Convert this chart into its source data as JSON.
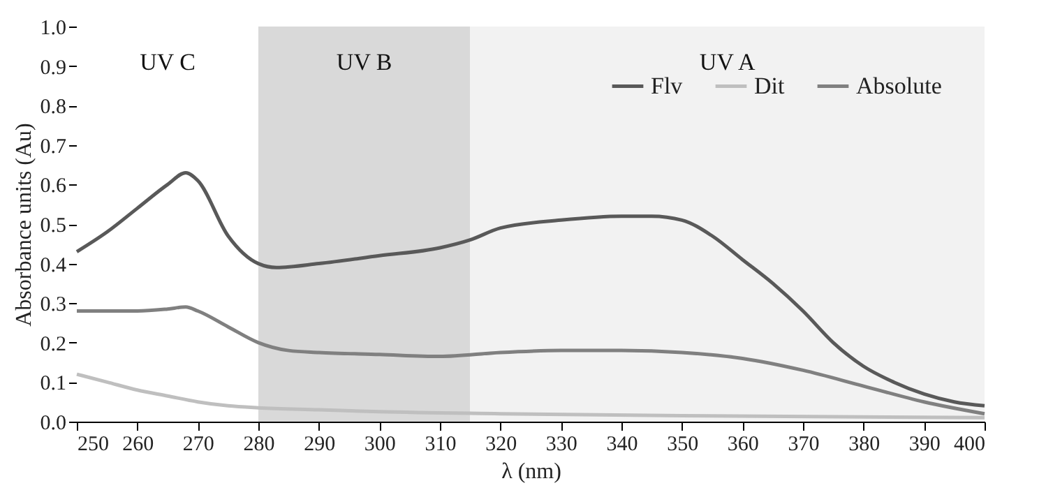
{
  "chart_data": {
    "type": "line",
    "xlabel": "λ (nm)",
    "ylabel": "Absorbance units (Au)",
    "legend": "top right",
    "xlim": [
      250,
      400
    ],
    "xticks": [
      250,
      260,
      270,
      280,
      290,
      300,
      310,
      320,
      330,
      340,
      350,
      360,
      370,
      380,
      390,
      400
    ],
    "ylim": [
      0,
      1
    ],
    "yticks": [
      {
        "value": 0,
        "label": "0.0"
      },
      {
        "value": 0.1,
        "label": "0.1"
      },
      {
        "value": 0.2,
        "label": "0.2"
      },
      {
        "value": 0.3,
        "label": "0.3"
      },
      {
        "value": 0.4,
        "label": "0.4"
      },
      {
        "value": 0.5,
        "label": "0.5"
      },
      {
        "value": 0.6,
        "label": "0.6"
      },
      {
        "value": 0.7,
        "label": "0.7"
      },
      {
        "value": 0.8,
        "label": "0.8"
      },
      {
        "value": 0.9,
        "label": "0.9"
      },
      {
        "value": 1,
        "label": "1.0"
      }
    ],
    "bands": [
      {
        "axis": "x",
        "from": 250,
        "to": 280,
        "label": "UV C",
        "color": "#ffffff"
      },
      {
        "axis": "x",
        "from": 280,
        "to": 315,
        "label": "UV B",
        "color": "#d9d9d9"
      },
      {
        "axis": "x",
        "from": 315,
        "to": 400,
        "label": "UV A",
        "color": "#f2f2f2"
      }
    ],
    "series": [
      {
        "name": "Flv",
        "color": "#595959",
        "x": [
          250,
          255,
          260,
          265,
          268,
          270,
          275,
          280,
          283,
          290,
          300,
          310,
          315,
          320,
          330,
          340,
          345,
          350,
          355,
          360,
          365,
          370,
          375,
          380,
          385,
          390,
          395,
          400
        ],
        "values": [
          0.43,
          0.48,
          0.54,
          0.6,
          0.63,
          0.61,
          0.47,
          0.4,
          0.39,
          0.4,
          0.42,
          0.44,
          0.46,
          0.49,
          0.51,
          0.52,
          0.52,
          0.51,
          0.47,
          0.41,
          0.35,
          0.28,
          0.2,
          0.14,
          0.1,
          0.07,
          0.05,
          0.04
        ]
      },
      {
        "name": "Dit",
        "color": "#bfbfbf",
        "x": [
          250,
          255,
          260,
          265,
          270,
          275,
          280,
          290,
          300,
          320,
          350,
          400
        ],
        "values": [
          0.12,
          0.1,
          0.08,
          0.065,
          0.05,
          0.04,
          0.035,
          0.03,
          0.025,
          0.02,
          0.015,
          0.01
        ]
      },
      {
        "name": "Absolute",
        "color": "#808080",
        "x": [
          250,
          260,
          265,
          268,
          270,
          275,
          280,
          285,
          290,
          300,
          310,
          320,
          330,
          340,
          350,
          360,
          370,
          380,
          390,
          400
        ],
        "values": [
          0.28,
          0.28,
          0.285,
          0.29,
          0.28,
          0.24,
          0.2,
          0.18,
          0.175,
          0.17,
          0.165,
          0.175,
          0.18,
          0.18,
          0.175,
          0.16,
          0.13,
          0.09,
          0.05,
          0.02
        ]
      }
    ]
  }
}
